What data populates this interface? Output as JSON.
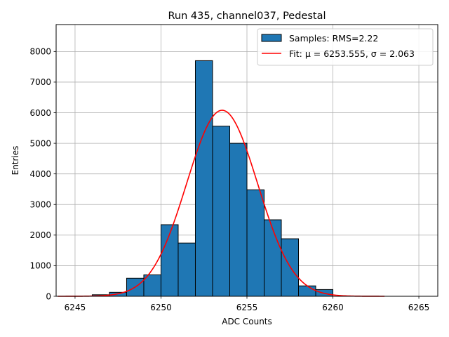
{
  "chart_data": {
    "type": "bar",
    "title": "Run 435, channel037, Pedestal",
    "xlabel": "ADC Counts",
    "ylabel": "Entries",
    "xlim": [
      6243.9,
      6266.1
    ],
    "ylim": [
      0,
      8880
    ],
    "grid": true,
    "legend_position": "top-right",
    "xticks": [
      6245,
      6250,
      6255,
      6260,
      6265
    ],
    "yticks": [
      0,
      1000,
      2000,
      3000,
      4000,
      5000,
      6000,
      7000,
      8000
    ],
    "histogram": {
      "name": "Samples: RMS=2.22",
      "color": "#1f77b4",
      "edgecolor": "#000000",
      "bins": [
        {
          "x0": 6246,
          "x1": 6247,
          "count": 50
        },
        {
          "x0": 6247,
          "x1": 6248,
          "count": 130
        },
        {
          "x0": 6248,
          "x1": 6249,
          "count": 590
        },
        {
          "x0": 6249,
          "x1": 6250,
          "count": 700
        },
        {
          "x0": 6250,
          "x1": 6251,
          "count": 2340
        },
        {
          "x0": 6251,
          "x1": 6252,
          "count": 1740
        },
        {
          "x0": 6252,
          "x1": 6253,
          "count": 7700
        },
        {
          "x0": 6253,
          "x1": 6254,
          "count": 5560
        },
        {
          "x0": 6254,
          "x1": 6255,
          "count": 5000
        },
        {
          "x0": 6255,
          "x1": 6256,
          "count": 3480
        },
        {
          "x0": 6256,
          "x1": 6257,
          "count": 2500
        },
        {
          "x0": 6257,
          "x1": 6258,
          "count": 1880
        },
        {
          "x0": 6258,
          "x1": 6259,
          "count": 340
        },
        {
          "x0": 6259,
          "x1": 6260,
          "count": 220
        }
      ]
    },
    "fit": {
      "name": "Fit: μ = 6253.555, σ = 2.063",
      "color": "#ff0000",
      "mu": 6253.555,
      "sigma": 2.063,
      "amplitude": 6080,
      "x_range": [
        6244,
        6263
      ]
    }
  }
}
